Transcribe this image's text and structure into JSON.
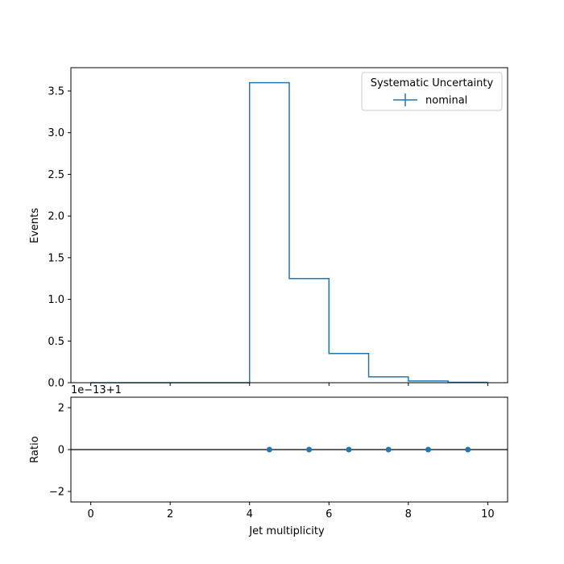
{
  "chart_data": [
    {
      "type": "histogram-step",
      "xlabel": "",
      "ylabel": "Events",
      "xlim": [
        -0.5,
        10.5
      ],
      "ylim": [
        0,
        3.78
      ],
      "bin_edges": [
        0,
        1,
        2,
        3,
        4,
        5,
        6,
        7,
        8,
        9,
        10
      ],
      "series": [
        {
          "name": "nominal",
          "color": "#1f77b4",
          "values": [
            0,
            0,
            0,
            0,
            3.6,
            1.25,
            0.35,
            0.07,
            0.02,
            0.005
          ]
        }
      ],
      "x_ticks": [
        0,
        2,
        4,
        6,
        8,
        10
      ],
      "y_ticks": [
        {
          "value": 0.0,
          "label": "0.0"
        },
        {
          "value": 0.5,
          "label": "0.5"
        },
        {
          "value": 1.0,
          "label": "1.0"
        },
        {
          "value": 1.5,
          "label": "1.5"
        },
        {
          "value": 2.0,
          "label": "2.0"
        },
        {
          "value": 2.5,
          "label": "2.5"
        },
        {
          "value": 3.0,
          "label": "3.0"
        },
        {
          "value": 3.5,
          "label": "3.5"
        }
      ],
      "legend": {
        "title": "Systematic Uncertainty",
        "entries": [
          "nominal"
        ],
        "placement": "upper-right"
      }
    },
    {
      "type": "scatter",
      "xlabel": "Jet multiplicity",
      "ylabel": "Ratio",
      "xlim": [
        -0.5,
        10.5
      ],
      "ylim": [
        -2.5,
        2.5
      ],
      "offset_label": "1e−13+1",
      "reference_line": 0,
      "points": [
        {
          "x": 4.5,
          "y": 0
        },
        {
          "x": 5.5,
          "y": 0
        },
        {
          "x": 6.5,
          "y": 0
        },
        {
          "x": 7.5,
          "y": 0
        },
        {
          "x": 8.5,
          "y": 0
        },
        {
          "x": 9.5,
          "y": 0
        }
      ],
      "color": "#1f77b4",
      "x_ticks": [
        {
          "value": 0,
          "label": "0"
        },
        {
          "value": 2,
          "label": "2"
        },
        {
          "value": 4,
          "label": "4"
        },
        {
          "value": 6,
          "label": "6"
        },
        {
          "value": 8,
          "label": "8"
        },
        {
          "value": 10,
          "label": "10"
        }
      ],
      "y_ticks": [
        {
          "value": -2,
          "label": "−2"
        },
        {
          "value": 0,
          "label": "0"
        },
        {
          "value": 2,
          "label": "2"
        }
      ]
    }
  ]
}
